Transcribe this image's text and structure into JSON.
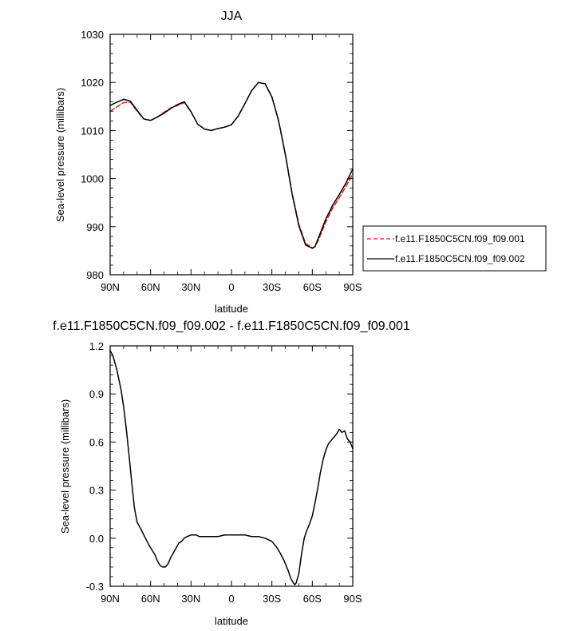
{
  "chart_data": [
    {
      "type": "line",
      "title": "JJA",
      "xlabel": "latitude",
      "ylabel": "Sea-level pressure (millibars)",
      "xlim": [
        90,
        -90
      ],
      "ylim": [
        980,
        1030
      ],
      "x_ticks": [
        {
          "value": 90,
          "label": "90N"
        },
        {
          "value": 60,
          "label": "60N"
        },
        {
          "value": 30,
          "label": "30N"
        },
        {
          "value": 0,
          "label": "0"
        },
        {
          "value": -30,
          "label": "30S"
        },
        {
          "value": -60,
          "label": "60S"
        },
        {
          "value": -90,
          "label": "90S"
        }
      ],
      "y_ticks": [
        {
          "value": 980,
          "label": "980"
        },
        {
          "value": 990,
          "label": "990"
        },
        {
          "value": 1000,
          "label": "1000"
        },
        {
          "value": 1010,
          "label": "1010"
        },
        {
          "value": 1020,
          "label": "1020"
        },
        {
          "value": 1030,
          "label": "1030"
        }
      ],
      "legend_position": "right",
      "series": [
        {
          "name": "f.e11.F1850C5CN.f09_f09.001",
          "color": "#e41a1c",
          "dash": "dashed",
          "x": [
            90,
            85,
            80,
            75,
            70,
            65,
            60,
            55,
            50,
            45,
            40,
            35,
            30,
            25,
            20,
            15,
            10,
            5,
            0,
            -5,
            -10,
            -15,
            -20,
            -25,
            -30,
            -35,
            -40,
            -45,
            -50,
            -55,
            -60,
            -62,
            -65,
            -70,
            -75,
            -80,
            -85,
            -90
          ],
          "y": [
            1014.0,
            1014.9,
            1015.8,
            1015.9,
            1014.0,
            1012.4,
            1012.1,
            1012.8,
            1013.8,
            1014.7,
            1015.2,
            1015.8,
            1013.9,
            1011.3,
            1010.3,
            1010.0,
            1010.4,
            1010.7,
            1011.2,
            1013.0,
            1015.6,
            1018.3,
            1020.0,
            1019.7,
            1017.0,
            1012.0,
            1005.0,
            997.0,
            990.5,
            986.5,
            985.6,
            985.8,
            987.5,
            991.0,
            993.8,
            996.0,
            998.4,
            1001.0
          ]
        },
        {
          "name": "f.e11.F1850C5CN.f09_f09.002",
          "color": "#000000",
          "dash": "solid",
          "x": [
            90,
            85,
            80,
            75,
            70,
            65,
            60,
            55,
            50,
            45,
            40,
            35,
            30,
            25,
            20,
            15,
            10,
            5,
            0,
            -5,
            -10,
            -15,
            -20,
            -25,
            -30,
            -35,
            -40,
            -45,
            -50,
            -55,
            -60,
            -62,
            -65,
            -70,
            -75,
            -80,
            -85,
            -90
          ],
          "y": [
            1015.2,
            1015.9,
            1016.5,
            1016.1,
            1014.2,
            1012.4,
            1012.1,
            1012.8,
            1013.6,
            1014.6,
            1015.4,
            1016.0,
            1013.9,
            1011.3,
            1010.3,
            1010.0,
            1010.4,
            1010.7,
            1011.2,
            1013.0,
            1015.6,
            1018.3,
            1020.0,
            1019.7,
            1017.0,
            1012.0,
            1005.0,
            996.8,
            990.2,
            986.2,
            985.5,
            985.9,
            988.0,
            991.6,
            994.4,
            996.7,
            999.1,
            1002.0
          ]
        }
      ]
    },
    {
      "type": "line",
      "title": "f.e11.F1850C5CN.f09_f09.002 - f.e11.F1850C5CN.f09_f09.001",
      "xlabel": "latitude",
      "ylabel": "Sea-level pressure (millibars)",
      "xlim": [
        90,
        -90
      ],
      "ylim": [
        -0.3,
        1.2
      ],
      "x_ticks": [
        {
          "value": 90,
          "label": "90N"
        },
        {
          "value": 60,
          "label": "60N"
        },
        {
          "value": 30,
          "label": "30N"
        },
        {
          "value": 0,
          "label": "0"
        },
        {
          "value": -30,
          "label": "30S"
        },
        {
          "value": -60,
          "label": "60S"
        },
        {
          "value": -90,
          "label": "90S"
        }
      ],
      "y_ticks": [
        {
          "value": -0.3,
          "label": "-0.3"
        },
        {
          "value": 0.0,
          "label": "0.0"
        },
        {
          "value": 0.3,
          "label": "0.3"
        },
        {
          "value": 0.6,
          "label": "0.6"
        },
        {
          "value": 0.9,
          "label": "0.9"
        },
        {
          "value": 1.2,
          "label": "1.2"
        }
      ],
      "series": [
        {
          "color": "#000000",
          "dash": "solid",
          "x": [
            90,
            88,
            85,
            82,
            80,
            78,
            76,
            74,
            72,
            70,
            68,
            65,
            62,
            60,
            57,
            55,
            53,
            51,
            49,
            47,
            45,
            43,
            41,
            39,
            37,
            35,
            33,
            30,
            28,
            26,
            24,
            22,
            20,
            15,
            10,
            5,
            0,
            -5,
            -10,
            -15,
            -20,
            -25,
            -30,
            -33,
            -36,
            -39,
            -42,
            -44,
            -46,
            -47,
            -48,
            -50,
            -52,
            -54,
            -56,
            -58,
            -60,
            -62,
            -64,
            -66,
            -68,
            -70,
            -72,
            -74,
            -76,
            -78,
            -80,
            -82,
            -84,
            -86,
            -88,
            -90
          ],
          "y": [
            1.17,
            1.14,
            1.05,
            0.93,
            0.82,
            0.68,
            0.52,
            0.35,
            0.19,
            0.1,
            0.07,
            0.02,
            -0.03,
            -0.06,
            -0.1,
            -0.14,
            -0.17,
            -0.18,
            -0.18,
            -0.16,
            -0.12,
            -0.09,
            -0.06,
            -0.03,
            -0.02,
            0.0,
            0.01,
            0.02,
            0.02,
            0.02,
            0.01,
            0.01,
            0.01,
            0.01,
            0.01,
            0.02,
            0.02,
            0.02,
            0.02,
            0.01,
            0.01,
            0.0,
            -0.02,
            -0.05,
            -0.09,
            -0.14,
            -0.2,
            -0.25,
            -0.28,
            -0.29,
            -0.28,
            -0.22,
            -0.1,
            0.0,
            0.05,
            0.09,
            0.14,
            0.22,
            0.31,
            0.41,
            0.49,
            0.55,
            0.59,
            0.61,
            0.63,
            0.65,
            0.68,
            0.66,
            0.67,
            0.62,
            0.6,
            0.56
          ]
        }
      ]
    }
  ]
}
